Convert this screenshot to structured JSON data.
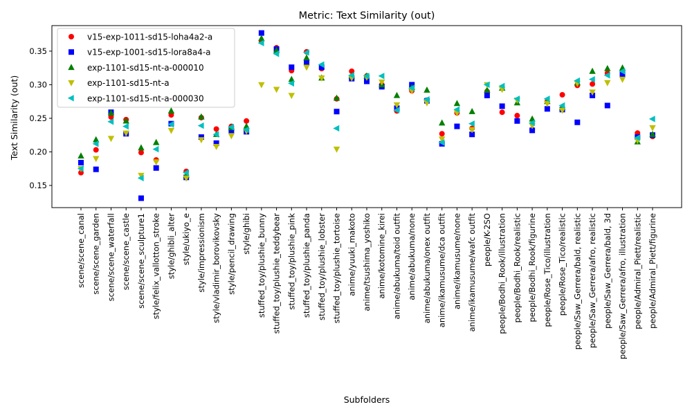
{
  "chart_data": {
    "type": "scatter",
    "title": "Metric: Text Similarity (out)",
    "xlabel": "Subfolders",
    "ylabel": "Text Similarity (out)",
    "ylim": [
      0.117,
      0.388
    ],
    "yticks": [
      0.15,
      0.2,
      0.25,
      0.3,
      0.35
    ],
    "ytick_labels": [
      "0.15",
      "0.20",
      "0.25",
      "0.30",
      "0.35"
    ],
    "grid": false,
    "legend_position": "upper-left",
    "categories": [
      "scene/scene_canal",
      "scene/scene_garden",
      "scene/scene_waterfall",
      "scene/scene_castle",
      "scene/scene_sculpture1",
      "style/felix_vallotton_stroke",
      "style/ghibli_alter",
      "style/ukiyo_e",
      "style/impressionism",
      "style/vladimir_borovikovsky",
      "style/pencil_drawing",
      "style/ghibi",
      "stuffed_toy/plushie_bunny",
      "stuffed_toy/plushie_teddybear",
      "stuffed_toy/plushie_pink",
      "stuffed_toy/plushie_panda",
      "stuffed_toy/plushie_lobster",
      "stuffed_toy/plushie_tortoise",
      "anime/yuuki_makoto",
      "anime/tsushima_yoshiko",
      "anime/kotomine_kirei",
      "anime/abukuma/toid outfit",
      "anime/abukuma/none",
      "anime/abukuma/onex outfit",
      "anime/ikamusume/dca outfit",
      "anime/ikamusume/none",
      "anime/ikamusume/wafc outfit",
      "people/K-2SO",
      "people/Bodhi_Rook/illustration",
      "people/Bodhi_Rook/realistic",
      "people/Bodhi_Rook/figurine",
      "people/Rose_Tico/illustration",
      "people/Rose_Tico/realistic",
      "people/Saw_Gerrera/bald, realistic",
      "people/Saw_Gerrera/afro, realistic",
      "people/Saw_Gerrera/bald, 3d",
      "people/Saw_Gerrera/afro, illustration",
      "people/Admiral_Piett/realistic",
      "people/Admiral_Piett/figurine"
    ],
    "series": [
      {
        "name": "v15-exp-1011-sd15-loha4a2-a",
        "color": "#ff0000",
        "marker": "circle",
        "values": [
          0.169,
          0.203,
          0.252,
          0.248,
          0.199,
          0.188,
          0.255,
          0.171,
          0.251,
          0.234,
          0.238,
          0.246,
          0.365,
          0.355,
          0.321,
          0.349,
          0.324,
          0.279,
          0.32,
          0.313,
          0.3,
          0.261,
          0.291,
          0.277,
          0.227,
          0.258,
          0.235,
          0.29,
          0.259,
          0.254,
          0.233,
          0.275,
          0.285,
          0.299,
          0.301,
          0.317,
          0.32,
          0.228,
          0.223
        ]
      },
      {
        "name": "v15-exp-1001-sd15-lora8a4-a",
        "color": "#0000ff",
        "marker": "square",
        "values": [
          0.184,
          0.174,
          0.259,
          0.227,
          0.131,
          0.176,
          0.242,
          0.162,
          0.222,
          0.213,
          0.232,
          0.23,
          0.377,
          0.353,
          0.326,
          0.333,
          0.326,
          0.26,
          0.309,
          0.305,
          0.297,
          0.265,
          0.3,
          0.276,
          0.212,
          0.238,
          0.226,
          0.284,
          0.268,
          0.246,
          0.232,
          0.264,
          0.263,
          0.244,
          0.284,
          0.269,
          0.316,
          0.222,
          0.225
        ]
      },
      {
        "name": "exp-1101-sd15-nt-a-000010",
        "color": "#008000",
        "marker": "triangle-up",
        "values": [
          0.194,
          0.218,
          0.258,
          0.246,
          0.206,
          0.214,
          0.261,
          0.165,
          0.252,
          0.226,
          0.236,
          0.238,
          0.369,
          0.351,
          0.308,
          0.34,
          0.31,
          0.28,
          0.313,
          0.313,
          0.3,
          0.284,
          0.296,
          0.292,
          0.243,
          0.272,
          0.26,
          0.292,
          0.295,
          0.273,
          0.249,
          0.275,
          0.266,
          0.303,
          0.32,
          0.324,
          0.325,
          0.215,
          0.226
        ]
      },
      {
        "name": "exp-1101-sd15-nt-a",
        "color": "#bfbf00",
        "marker": "triangle-down",
        "values": [
          0.175,
          0.19,
          0.22,
          0.228,
          0.165,
          0.185,
          0.232,
          0.161,
          0.218,
          0.208,
          0.224,
          0.231,
          0.3,
          0.293,
          0.284,
          0.326,
          0.31,
          0.204,
          0.31,
          0.311,
          0.304,
          0.27,
          0.291,
          0.273,
          0.219,
          0.258,
          0.233,
          0.3,
          0.293,
          0.277,
          0.239,
          0.272,
          0.262,
          0.302,
          0.289,
          0.303,
          0.308,
          0.217,
          0.236
        ]
      },
      {
        "name": "exp-1101-sd15-nt-a-000030",
        "color": "#00bfbf",
        "marker": "triangle-left",
        "values": [
          0.175,
          0.212,
          0.245,
          0.238,
          0.161,
          0.204,
          0.241,
          0.169,
          0.239,
          0.226,
          0.237,
          0.233,
          0.362,
          0.346,
          0.302,
          0.348,
          0.33,
          0.235,
          0.314,
          0.313,
          0.313,
          0.262,
          0.295,
          0.278,
          0.214,
          0.263,
          0.242,
          0.3,
          0.298,
          0.279,
          0.243,
          0.279,
          0.269,
          0.306,
          0.308,
          0.314,
          0.32,
          0.221,
          0.249
        ]
      }
    ]
  }
}
